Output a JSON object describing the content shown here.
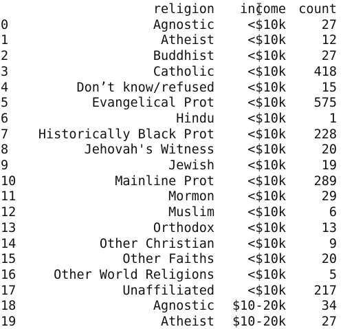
{
  "table": {
    "headers": {
      "index": "",
      "religion": "religion",
      "income": "income",
      "count": "count"
    },
    "rows": [
      {
        "index": "0",
        "religion": "Agnostic",
        "income": "<$10k",
        "count": "27"
      },
      {
        "index": "1",
        "religion": "Atheist",
        "income": "<$10k",
        "count": "12"
      },
      {
        "index": "2",
        "religion": "Buddhist",
        "income": "<$10k",
        "count": "27"
      },
      {
        "index": "3",
        "religion": "Catholic",
        "income": "<$10k",
        "count": "418"
      },
      {
        "index": "4",
        "religion": "Don’t know/refused",
        "income": "<$10k",
        "count": "15"
      },
      {
        "index": "5",
        "religion": "Evangelical Prot",
        "income": "<$10k",
        "count": "575"
      },
      {
        "index": "6",
        "religion": "Hindu",
        "income": "<$10k",
        "count": "1"
      },
      {
        "index": "7",
        "religion": "Historically Black Prot",
        "income": "<$10k",
        "count": "228"
      },
      {
        "index": "8",
        "religion": "Jehovah's Witness",
        "income": "<$10k",
        "count": "20"
      },
      {
        "index": "9",
        "religion": "Jewish",
        "income": "<$10k",
        "count": "19"
      },
      {
        "index": "10",
        "religion": "Mainline Prot",
        "income": "<$10k",
        "count": "289"
      },
      {
        "index": "11",
        "religion": "Mormon",
        "income": "<$10k",
        "count": "29"
      },
      {
        "index": "12",
        "religion": "Muslim",
        "income": "<$10k",
        "count": "6"
      },
      {
        "index": "13",
        "religion": "Orthodox",
        "income": "<$10k",
        "count": "13"
      },
      {
        "index": "14",
        "religion": "Other Christian",
        "income": "<$10k",
        "count": "9"
      },
      {
        "index": "15",
        "religion": "Other Faiths",
        "income": "<$10k",
        "count": "20"
      },
      {
        "index": "16",
        "religion": "Other World Religions",
        "income": "<$10k",
        "count": "5"
      },
      {
        "index": "17",
        "religion": "Unaffiliated",
        "income": "<$10k",
        "count": "217"
      },
      {
        "index": "18",
        "religion": "Agnostic",
        "income": "$10-20k",
        "count": "34"
      },
      {
        "index": "19",
        "religion": "Atheist",
        "income": "$10-20k",
        "count": "27"
      }
    ]
  },
  "icons": {
    "cursor": "text-cursor-icon"
  }
}
